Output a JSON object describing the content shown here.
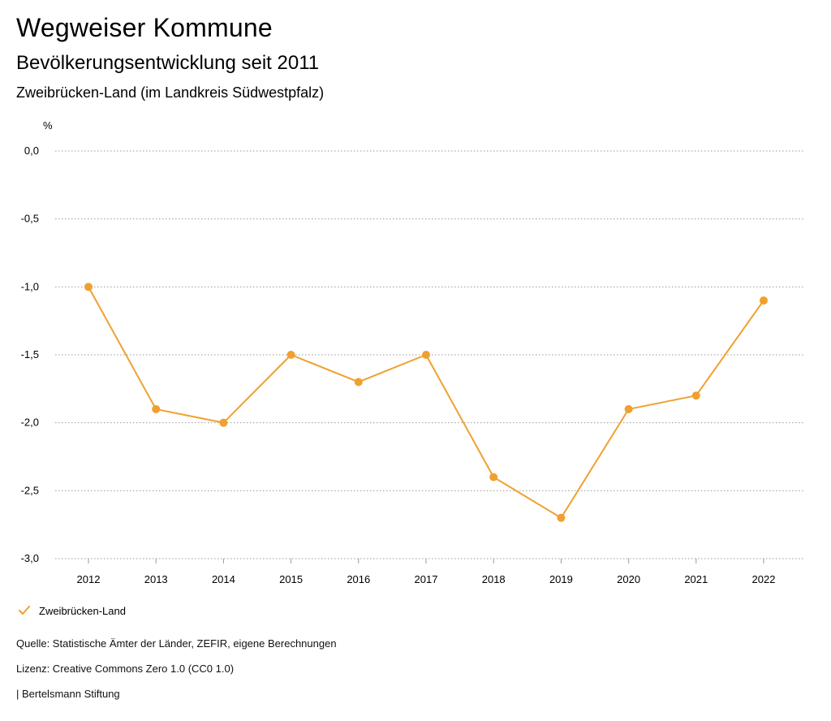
{
  "header": {
    "title": "Wegweiser Kommune",
    "subtitle": "Bevölkerungsentwicklung seit 2011",
    "region": "Zweibrücken-Land (im Landkreis Südwestpfalz)"
  },
  "chart_data": {
    "type": "line",
    "ylabel": "%",
    "ylim": [
      -3.0,
      0.0
    ],
    "yticks": [
      0.0,
      -0.5,
      -1.0,
      -1.5,
      -2.0,
      -2.5,
      -3.0
    ],
    "ytick_labels": [
      "0,0",
      "-0,5",
      "-1,0",
      "-1,5",
      "-2,0",
      "-2,5",
      "-3,0"
    ],
    "grid": true,
    "categories": [
      "2012",
      "2013",
      "2014",
      "2015",
      "2016",
      "2017",
      "2018",
      "2019",
      "2020",
      "2021",
      "2022"
    ],
    "series": [
      {
        "name": "Zweibrücken-Land",
        "color": "#f0a030",
        "values": [
          -1.0,
          -1.9,
          -2.0,
          -1.5,
          -1.7,
          -1.5,
          -2.4,
          -2.7,
          -1.9,
          -1.8,
          -1.1
        ]
      }
    ],
    "legend_position": "bottom-left"
  },
  "legend": {
    "items": [
      {
        "label": "Zweibrücken-Land",
        "icon": "check-icon",
        "color": "#f0a030"
      }
    ]
  },
  "footer": {
    "source": "Quelle: Statistische Ämter der Länder, ZEFIR, eigene Berechnungen",
    "license": "Lizenz: Creative Commons Zero 1.0 (CC0 1.0)",
    "publisher": "| Bertelsmann Stiftung"
  }
}
